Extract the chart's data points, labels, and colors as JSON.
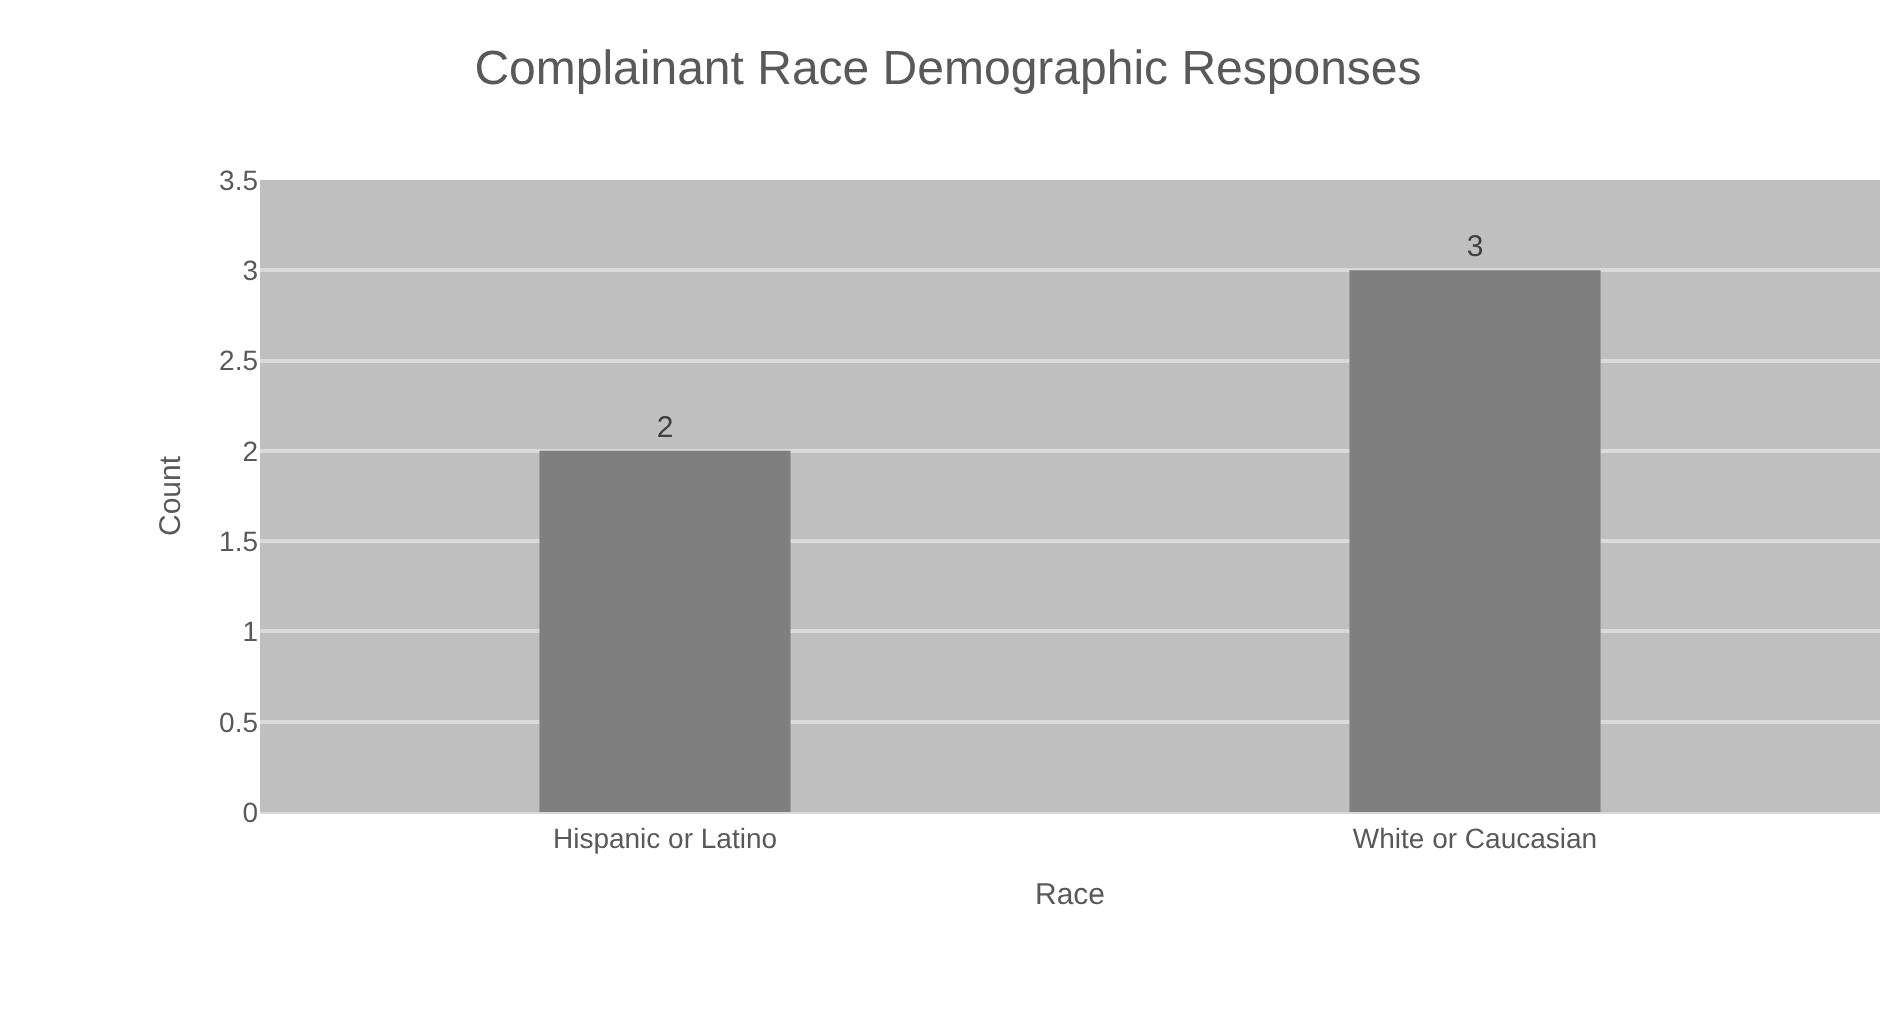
{
  "chart_data": {
    "type": "bar",
    "title": "Complainant Race Demographic Responses",
    "xlabel": "Race",
    "ylabel": "Count",
    "categories": [
      "Hispanic or Latino",
      "White or Caucasian"
    ],
    "values": [
      2,
      3
    ],
    "color": "#7f7f7f",
    "ylim": [
      0,
      3.5
    ],
    "yticks": [
      0,
      0.5,
      1,
      1.5,
      2,
      2.5,
      3,
      3.5
    ],
    "grid": "y",
    "data_labels": true
  }
}
